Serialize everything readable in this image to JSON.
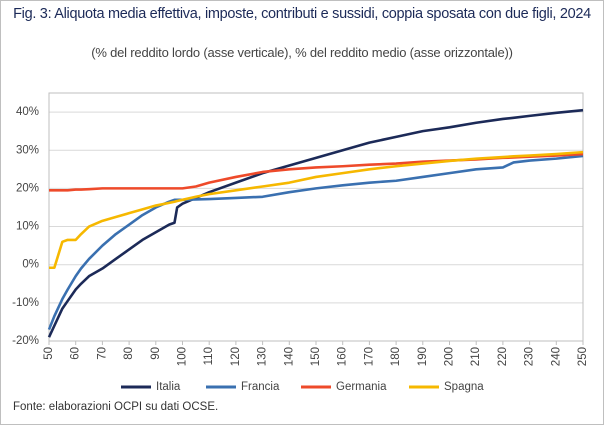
{
  "chart_data": {
    "type": "line",
    "title": "Fig. 3: Aliquota media effettiva, imposte, contributi e sussidi, coppia sposata con due figli, 2024",
    "subtitle": "(% del reddito lordo (asse verticale), % del reddito medio (asse orizzontale))",
    "source": "Fonte: elaborazioni OCPI su dati OCSE.",
    "x": [
      50,
      52,
      55,
      57,
      60,
      62,
      65,
      70,
      75,
      80,
      85,
      90,
      95,
      97,
      98,
      100,
      105,
      110,
      120,
      130,
      140,
      150,
      160,
      170,
      180,
      190,
      200,
      210,
      220,
      224,
      230,
      240,
      250
    ],
    "xlim": [
      50,
      250
    ],
    "xticks": [
      50,
      60,
      70,
      80,
      90,
      100,
      110,
      120,
      130,
      140,
      150,
      160,
      170,
      180,
      190,
      200,
      210,
      220,
      230,
      240,
      250
    ],
    "ylim": [
      -20,
      45
    ],
    "yticks": [
      {
        "value": -20,
        "label": "-20%"
      },
      {
        "value": -10,
        "label": "-10%"
      },
      {
        "value": 0,
        "label": "0%"
      },
      {
        "value": 10,
        "label": "10%"
      },
      {
        "value": 20,
        "label": "20%"
      },
      {
        "value": 30,
        "label": "30%"
      },
      {
        "value": 40,
        "label": "40%"
      }
    ],
    "grid": true,
    "legend": "bottom",
    "series": [
      {
        "name": "Italia",
        "color": "#1c2a58",
        "values": [
          -19,
          -16,
          -11.5,
          -9.5,
          -6.5,
          -5,
          -3,
          -1,
          1.5,
          4,
          6.5,
          8.5,
          10.5,
          11,
          15,
          16,
          17.5,
          19,
          21.5,
          24,
          26,
          28,
          30,
          32,
          33.5,
          35,
          36,
          37.2,
          38.2,
          38.5,
          39,
          39.8,
          40.5
        ]
      },
      {
        "name": "Francia",
        "color": "#3a70b0",
        "values": [
          -17,
          -13.5,
          -9,
          -6.5,
          -3,
          -1,
          1.5,
          5,
          8,
          10.5,
          13,
          15,
          16.5,
          17,
          17,
          17,
          17.1,
          17.2,
          17.5,
          17.8,
          19,
          20,
          20.8,
          21.5,
          22,
          23,
          24,
          25,
          25.5,
          26.8,
          27.3,
          27.8,
          28.5
        ]
      },
      {
        "name": "Germania",
        "color": "#ee4a2a",
        "values": [
          19.5,
          19.5,
          19.5,
          19.5,
          19.7,
          19.7,
          19.8,
          20,
          20,
          20,
          20,
          20,
          20,
          20,
          20,
          20,
          20.5,
          21.5,
          23,
          24.3,
          25,
          25.5,
          25.8,
          26.2,
          26.5,
          27,
          27.3,
          27.6,
          28,
          28.1,
          28.3,
          28.6,
          29
        ]
      },
      {
        "name": "Spagna",
        "color": "#f6b800",
        "values": [
          -0.8,
          -0.8,
          6,
          6.5,
          6.5,
          8,
          10,
          11.5,
          12.5,
          13.5,
          14.5,
          15.5,
          16.2,
          16.5,
          16.7,
          17,
          17.8,
          18.5,
          19.5,
          20.5,
          21.5,
          23,
          24,
          25,
          25.8,
          26.5,
          27.2,
          27.8,
          28.2,
          28.4,
          28.6,
          29,
          29.5
        ]
      }
    ]
  }
}
